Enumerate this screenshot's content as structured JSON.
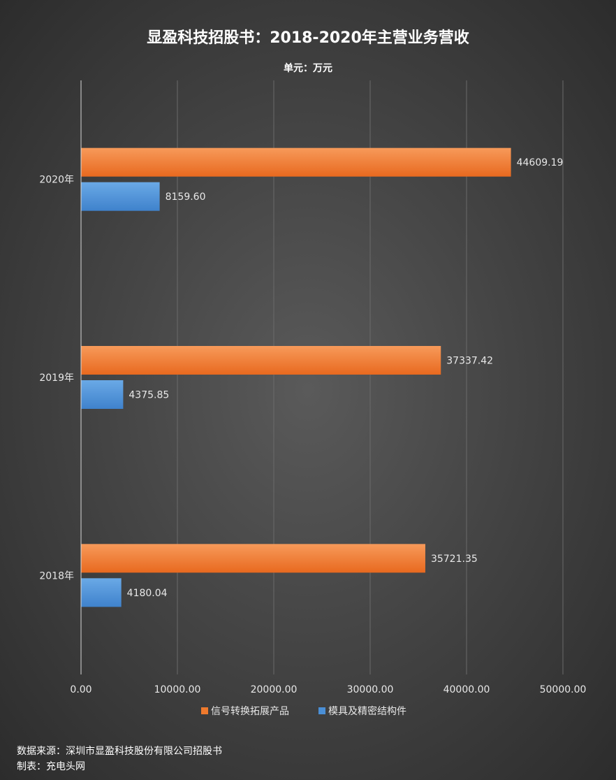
{
  "chart_data": {
    "type": "bar",
    "orientation": "horizontal",
    "title": "显盈科技招股书：2018-2020年主营业务营收",
    "subtitle": "单元：万元",
    "categories": [
      "2018年",
      "2019年",
      "2020年"
    ],
    "series": [
      {
        "name": "信号转换拓展产品",
        "color": "#ef7a2d",
        "values": [
          35721.35,
          37337.42,
          44609.19
        ],
        "labels": [
          "35721.35",
          "37337.42",
          "44609.19"
        ]
      },
      {
        "name": "模具及精密结构件",
        "color": "#4a8fd6",
        "values": [
          4180.04,
          4375.85,
          8159.6
        ],
        "labels": [
          "4180.04",
          "4375.85",
          "8159.60"
        ]
      }
    ],
    "xlim": [
      0,
      50000
    ],
    "x_ticks": [
      "0.00",
      "10000.00",
      "20000.00",
      "30000.00",
      "40000.00",
      "50000.00"
    ],
    "grid": true,
    "legend_position": "bottom"
  },
  "footer": {
    "source": "数据来源：深圳市显盈科技股份有限公司招股书",
    "maker": "制表：充电头网"
  }
}
